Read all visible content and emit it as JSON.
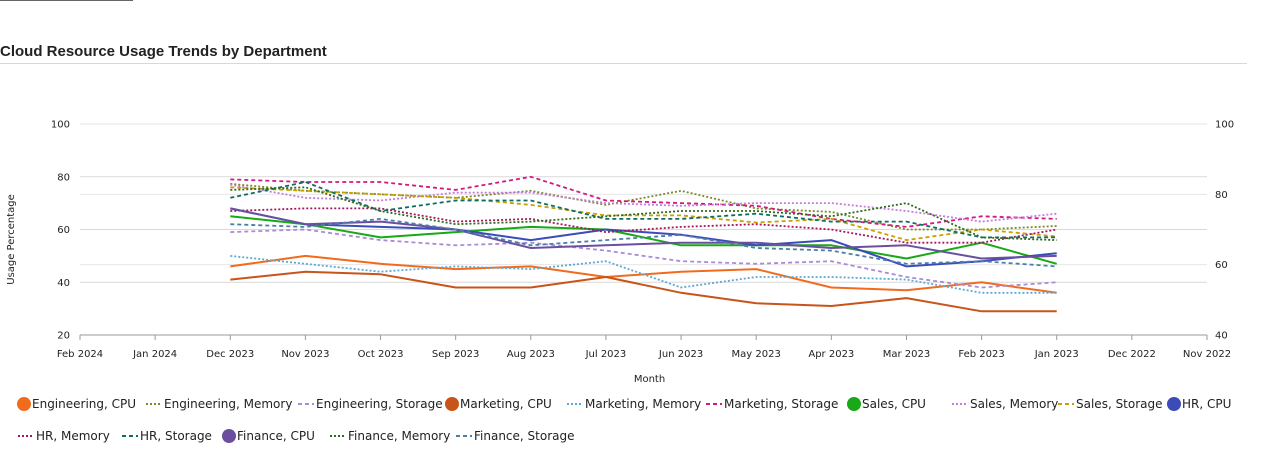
{
  "title": "Cloud Resource Usage Trends by Department",
  "chart_data": {
    "type": "line",
    "xlabel": "Month",
    "ylabel": "Usage Percentage",
    "x": [
      "Dec 2023",
      "Nov 2023",
      "Oct 2023",
      "Sep 2023",
      "Aug 2023",
      "Jul 2023",
      "Jun 2023",
      "May 2023",
      "Apr 2023",
      "Mar 2023",
      "Feb 2023",
      "Jan 2023"
    ],
    "x_ticks": [
      "Feb 2024",
      "Jan 2024",
      "Dec 2023",
      "Nov 2023",
      "Oct 2023",
      "Sep 2023",
      "Aug 2023",
      "Jul 2023",
      "Jun 2023",
      "May 2023",
      "Apr 2023",
      "Mar 2023",
      "Feb 2023",
      "Jan 2023",
      "Dec 2022",
      "Nov 2022"
    ],
    "x_reversed": true,
    "y_left": {
      "range": [
        20,
        100
      ],
      "ticks": [
        "20",
        "40",
        "60",
        "80",
        "100"
      ]
    },
    "y_right": {
      "range": [
        40,
        100
      ],
      "ticks": [
        "40",
        "60",
        "80",
        "100"
      ]
    },
    "grid": true,
    "legend_position": "bottom",
    "series": [
      {
        "name": "Engineering, CPU",
        "dept": "Engineering",
        "metric": "CPU",
        "color": "#f26b1d",
        "axis": "left",
        "values": [
          46,
          50,
          47,
          45,
          46,
          42,
          44,
          45,
          38,
          37,
          40,
          36
        ]
      },
      {
        "name": "Engineering, Memory",
        "dept": "Engineering",
        "metric": "Memory",
        "color": "#7a8a2a",
        "axis": "right",
        "values": [
          83,
          81,
          80,
          79,
          81,
          77,
          81,
          76,
          75,
          70,
          70,
          71
        ]
      },
      {
        "name": "Engineering, Storage",
        "dept": "Engineering",
        "metric": "Storage",
        "color": "#a98bd8",
        "axis": "left",
        "values": [
          59,
          60,
          56,
          54,
          55,
          52,
          48,
          47,
          48,
          42,
          38,
          40
        ]
      },
      {
        "name": "Marketing, CPU",
        "dept": "Marketing",
        "metric": "CPU",
        "color": "#c9541a",
        "axis": "left",
        "values": [
          41,
          44,
          43,
          38,
          38,
          42,
          36,
          32,
          31,
          34,
          29,
          29
        ]
      },
      {
        "name": "Marketing, Memory",
        "dept": "Marketing",
        "metric": "Memory",
        "color": "#5aa9d6",
        "axis": "left",
        "values": [
          50,
          47,
          44,
          46,
          45,
          48,
          38,
          42,
          42,
          41,
          36,
          36
        ]
      },
      {
        "name": "Marketing, Storage",
        "dept": "Marketing",
        "metric": "Storage",
        "color": "#d4187f",
        "axis": "left",
        "values": [
          79,
          78,
          78,
          75,
          80,
          71,
          70,
          69,
          64,
          61,
          65,
          64
        ]
      },
      {
        "name": "Sales, CPU",
        "dept": "Sales",
        "metric": "CPU",
        "color": "#18a818",
        "axis": "left",
        "values": [
          65,
          62,
          57,
          59,
          61,
          60,
          54,
          54,
          54,
          49,
          55,
          47
        ]
      },
      {
        "name": "Sales, Memory",
        "dept": "Sales",
        "metric": "Memory",
        "color": "#c77ae0",
        "axis": "left",
        "values": [
          77,
          72,
          71,
          74,
          74,
          70,
          69,
          70,
          70,
          67,
          63,
          66
        ]
      },
      {
        "name": "Sales, Storage",
        "dept": "Sales",
        "metric": "Storage",
        "color": "#c9a000",
        "axis": "right",
        "values": [
          82,
          81,
          80,
          79,
          77,
          74,
          74,
          72,
          73,
          67,
          70,
          68
        ]
      },
      {
        "name": "HR, CPU",
        "dept": "HR",
        "metric": "CPU",
        "color": "#3b4cb8",
        "axis": "left",
        "values": [
          68,
          62,
          61,
          60,
          56,
          60,
          58,
          54,
          56,
          46,
          48,
          51
        ]
      },
      {
        "name": "HR, Memory",
        "dept": "HR",
        "metric": "Memory",
        "color": "#a3185f",
        "axis": "left",
        "values": [
          67,
          68,
          68,
          63,
          64,
          59,
          61,
          62,
          60,
          55,
          55,
          60
        ]
      },
      {
        "name": "HR, Storage",
        "dept": "HR",
        "metric": "Storage",
        "color": "#0b6e64",
        "axis": "left",
        "values": [
          72,
          78,
          67,
          71,
          71,
          64,
          64,
          66,
          63,
          63,
          57,
          57
        ]
      },
      {
        "name": "Finance, CPU",
        "dept": "Finance",
        "metric": "CPU",
        "color": "#6a4fa0",
        "axis": "left",
        "values": [
          68,
          62,
          63,
          60,
          53,
          54,
          55,
          55,
          53,
          54,
          49,
          50
        ]
      },
      {
        "name": "Finance, Memory",
        "dept": "Finance",
        "metric": "Memory",
        "color": "#2e6b1a",
        "axis": "left",
        "values": [
          75,
          76,
          67,
          62,
          63,
          65,
          67,
          67,
          65,
          70,
          57,
          56
        ]
      },
      {
        "name": "Finance, Storage",
        "dept": "Finance",
        "metric": "Storage",
        "color": "#4a7fa8",
        "axis": "left",
        "values": [
          62,
          61,
          64,
          60,
          54,
          56,
          58,
          53,
          52,
          47,
          48,
          46
        ]
      }
    ]
  }
}
